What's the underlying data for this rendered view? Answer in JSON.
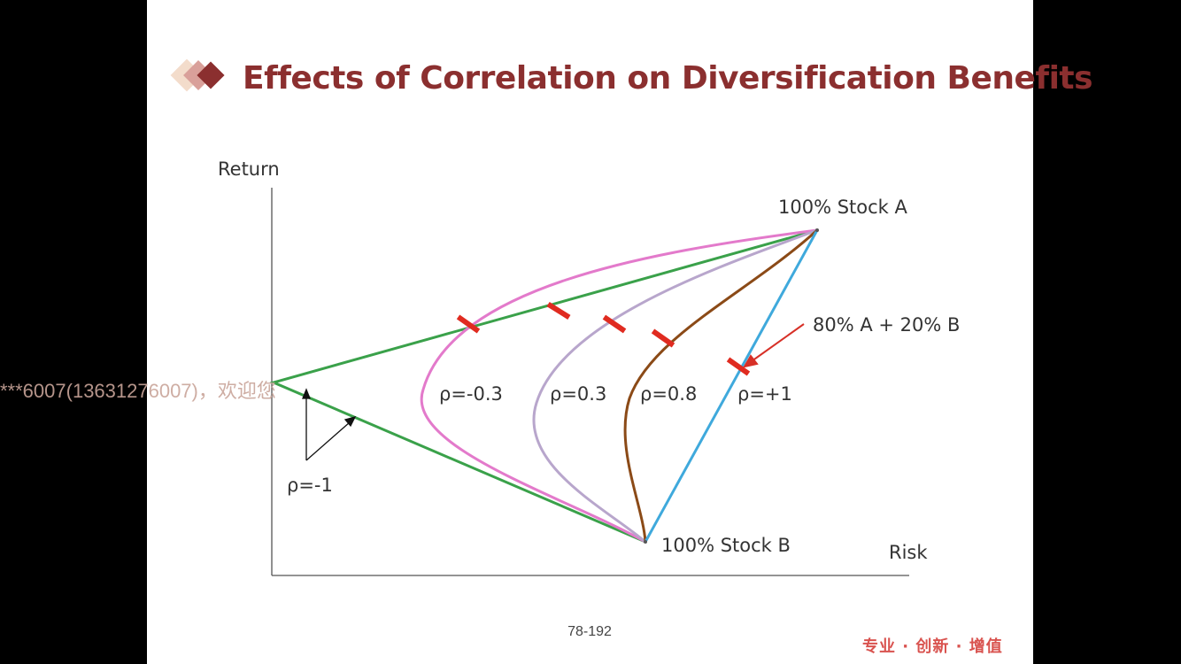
{
  "slide": {
    "title": "Effects of Correlation on Diversification Benefits",
    "page_number": "78-192",
    "brand": "专业 · 创新 · 增值",
    "watermark": "***6007(13631276007)，欢迎您"
  },
  "chart_data": {
    "type": "line",
    "title": "",
    "xlabel": "Risk",
    "ylabel": "Return",
    "grid": false,
    "legend": "none",
    "points": {
      "stock_a": {
        "label": "100% Stock A"
      },
      "stock_b": {
        "label": "100% Stock B"
      }
    },
    "annotation": "80% A + 20% B",
    "series": [
      {
        "name": "ρ=-1",
        "color": "#3aa14a"
      },
      {
        "name": "ρ=-0.3",
        "color": "#e37acb"
      },
      {
        "name": "ρ=0.3",
        "color": "#b8a6cc"
      },
      {
        "name": "ρ=0.8",
        "color": "#8b4a17"
      },
      {
        "name": "ρ=+1",
        "color": "#3fa9dc"
      }
    ],
    "marker_color": "#e02b20",
    "axis_color": "#555555"
  }
}
